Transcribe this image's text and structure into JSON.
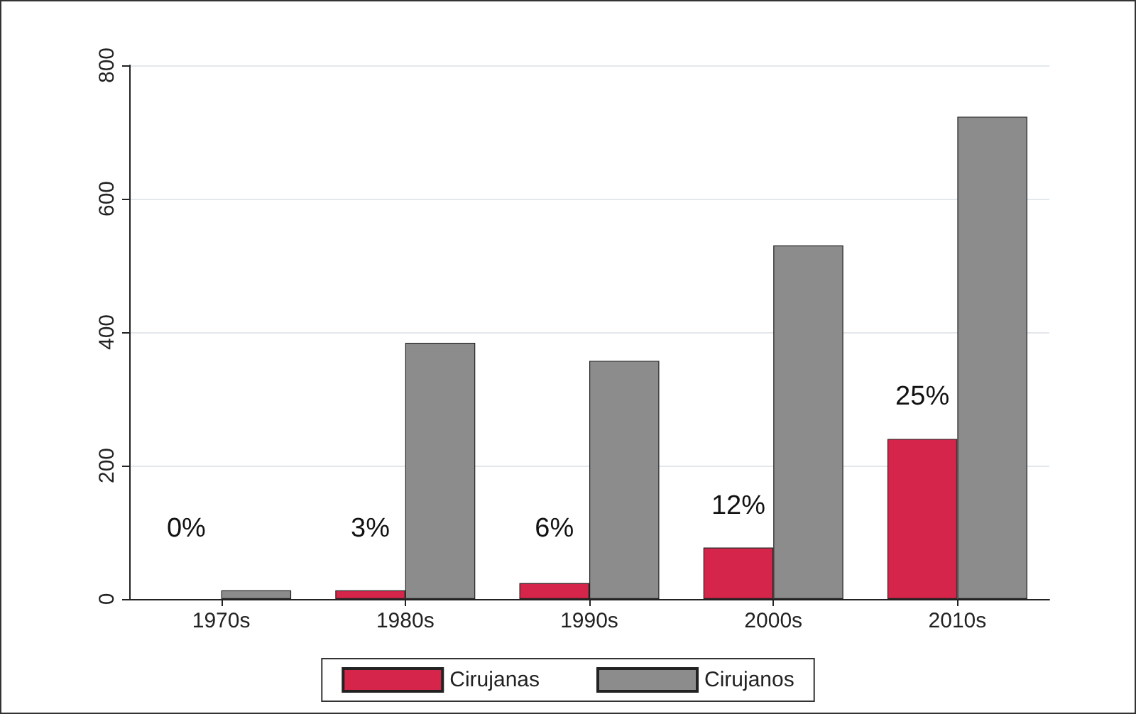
{
  "chart_data": {
    "type": "bar",
    "categories": [
      "1970s",
      "1980s",
      "1990s",
      "2000s",
      "2010s"
    ],
    "series": [
      {
        "name": "Cirujanas",
        "color": "#d6254a",
        "values": [
          null,
          13,
          24,
          77,
          240
        ]
      },
      {
        "name": "Cirujanos",
        "color": "#8c8c8c",
        "values": [
          13,
          384,
          357,
          530,
          723
        ]
      }
    ],
    "ylim": [
      0,
      800
    ],
    "yticks": [
      0,
      200,
      400,
      600,
      800
    ],
    "grid": "y",
    "legend": "bottom",
    "annotations": [
      "0%",
      "3%",
      "6%",
      "12%",
      "25%"
    ]
  }
}
